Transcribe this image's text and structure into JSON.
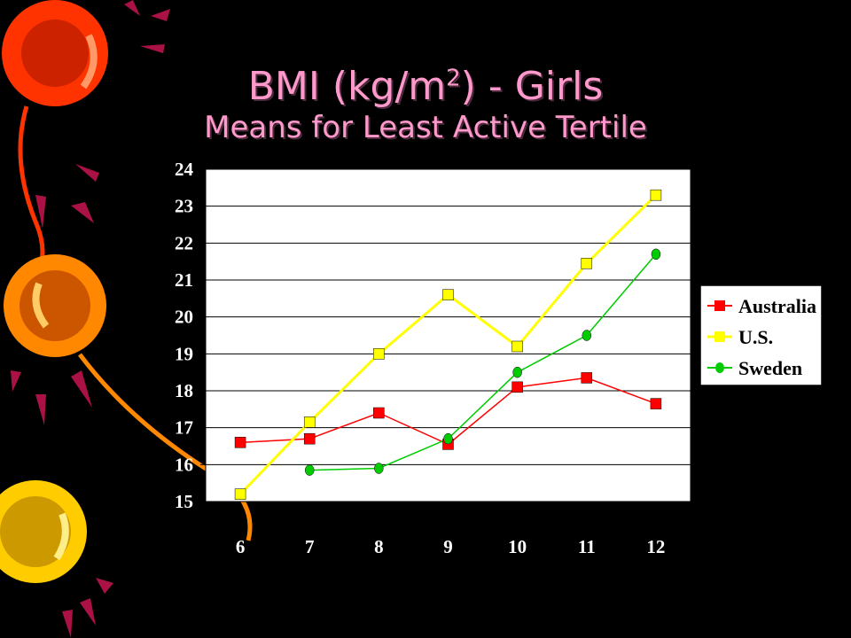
{
  "slide": {
    "title_prefix": "BMI (kg/m",
    "title_sup": "2",
    "title_suffix": ") - Girls",
    "subtitle": "Means for Least Active Tertile",
    "title_color": "#ff99cc",
    "background": "#000000"
  },
  "chart_data": {
    "type": "line",
    "title": "BMI (kg/m2) - Girls",
    "subtitle": "Means for Least Active Tertile",
    "xlabel": "",
    "ylabel": "",
    "categories": [
      "6",
      "7",
      "8",
      "9",
      "10",
      "11",
      "12"
    ],
    "ylim": [
      15,
      24
    ],
    "yticks": [
      "15",
      "16",
      "17",
      "18",
      "19",
      "20",
      "21",
      "22",
      "23",
      "24"
    ],
    "grid": true,
    "legend_position": "right",
    "series": [
      {
        "name": "Australia",
        "color": "#ff0000",
        "marker": "square",
        "values": [
          16.6,
          16.7,
          17.4,
          16.55,
          18.1,
          18.35,
          17.65
        ]
      },
      {
        "name": "U.S.",
        "color": "#ffff00",
        "marker": "square",
        "values": [
          15.2,
          17.15,
          19.0,
          20.6,
          19.2,
          21.45,
          23.3
        ]
      },
      {
        "name": "Sweden",
        "color": "#00cc00",
        "marker": "circle",
        "values": [
          null,
          15.85,
          15.9,
          16.7,
          18.5,
          19.5,
          21.7
        ]
      }
    ]
  }
}
